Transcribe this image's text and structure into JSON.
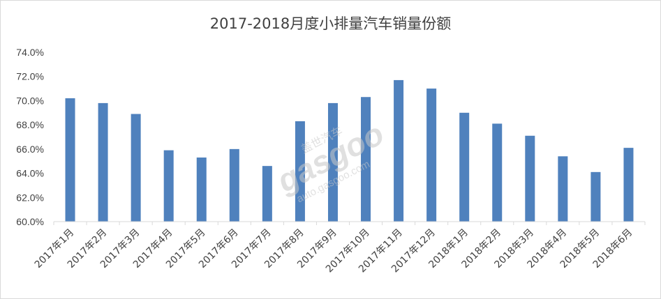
{
  "chart_data": {
    "type": "bar",
    "title": "2017-2018月度小排量汽车销量份额",
    "xlabel": "",
    "ylabel": "",
    "categories": [
      "2017年1月",
      "2017年2月",
      "2017年3月",
      "2017年4月",
      "2017年5月",
      "2017年6月",
      "2017年7月",
      "2017年8月",
      "2017年9月",
      "2017年10月",
      "2017年11月",
      "2017年12月",
      "2018年1月",
      "2018年2月",
      "2018年3月",
      "2018年4月",
      "2018年5月",
      "2018年6月"
    ],
    "values": [
      70.2,
      69.8,
      68.9,
      65.9,
      65.3,
      66.0,
      64.6,
      68.3,
      69.8,
      70.3,
      71.7,
      71.0,
      69.0,
      68.1,
      67.1,
      65.4,
      64.1,
      66.1
    ],
    "y_tick_labels": [
      "60.0%",
      "62.0%",
      "64.0%",
      "66.0%",
      "68.0%",
      "70.0%",
      "72.0%",
      "74.0%"
    ],
    "ylim": [
      60,
      74
    ],
    "grid": false,
    "legend": "none",
    "bar_color": "#4f81bd"
  },
  "watermark": {
    "brand": "gasgoo",
    "cn": "盖世汽车",
    "url": "auto.gasgoo.com"
  }
}
